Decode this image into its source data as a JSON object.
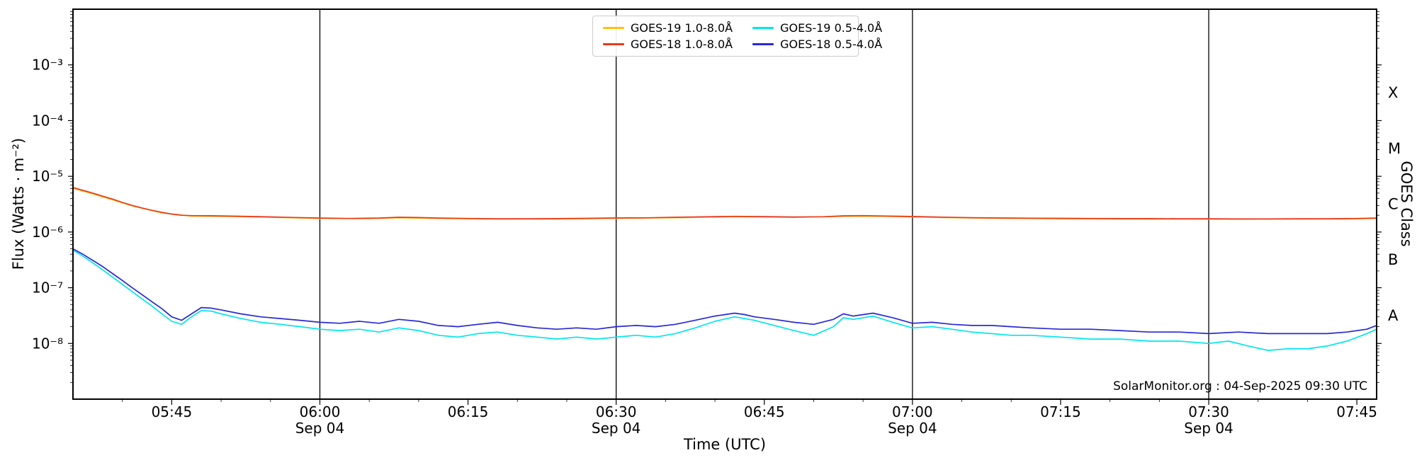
{
  "chart_data": {
    "type": "line",
    "title": "",
    "annotation": "SolarMonitor.org : 04-Sep-2025 09:30 UTC",
    "legend_position": "top-center",
    "grid": false,
    "x_axis": {
      "label": "Time (UTC)",
      "range": [
        "05:35",
        "07:47"
      ],
      "major_ticks": [
        {
          "time": "05:45",
          "label": "05:45"
        },
        {
          "time": "06:00",
          "label": "06:00"
        },
        {
          "time": "06:15",
          "label": "06:15"
        },
        {
          "time": "06:30",
          "label": "06:30"
        },
        {
          "time": "06:45",
          "label": "06:45"
        },
        {
          "time": "07:00",
          "label": "07:00"
        },
        {
          "time": "07:15",
          "label": "07:15"
        },
        {
          "time": "07:30",
          "label": "07:30"
        },
        {
          "time": "07:45",
          "label": "07:45"
        }
      ],
      "day_labels": [
        {
          "time": "06:00",
          "label": "Sep 04"
        },
        {
          "time": "06:30",
          "label": "Sep 04"
        },
        {
          "time": "07:00",
          "label": "Sep 04"
        },
        {
          "time": "07:30",
          "label": "Sep 04"
        }
      ],
      "minor_tick_minutes": 5
    },
    "y_axis": {
      "label": "Flux (Watts · m⁻²)",
      "scale": "log",
      "lim": [
        1e-09,
        0.01
      ],
      "major_ticks": [
        {
          "value": 0.001,
          "label": "10⁻³"
        },
        {
          "value": 0.0001,
          "label": "10⁻⁴"
        },
        {
          "value": 1e-05,
          "label": "10⁻⁵"
        },
        {
          "value": 1e-06,
          "label": "10⁻⁶"
        },
        {
          "value": 1e-07,
          "label": "10⁻⁷"
        },
        {
          "value": 1e-08,
          "label": "10⁻⁸"
        }
      ]
    },
    "right_axis": {
      "label": "GOES Class",
      "class_labels": [
        {
          "label": "X",
          "value": 0.0003162
        },
        {
          "label": "M",
          "value": 3.162e-05
        },
        {
          "label": "C",
          "value": 3.162e-06
        },
        {
          "label": "B",
          "value": 3.162e-07
        },
        {
          "label": "A",
          "value": 3.162e-08
        }
      ]
    },
    "vlines": [
      "06:00",
      "06:30",
      "07:00",
      "07:30"
    ],
    "series": [
      {
        "id": "goes19-long",
        "name": "GOES-19 1.0-8.0Å",
        "color": "#FFC30B",
        "points": [
          [
            "05:35",
            6.1e-06
          ],
          [
            "05:38",
            4.3e-06
          ],
          [
            "05:41",
            2.95e-06
          ],
          [
            "05:44",
            2.2e-06
          ],
          [
            "05:47",
            1.93e-06
          ],
          [
            "05:51",
            1.9e-06
          ],
          [
            "05:55",
            1.84e-06
          ],
          [
            "06:00",
            1.75e-06
          ],
          [
            "06:05",
            1.74e-06
          ],
          [
            "06:08",
            1.8e-06
          ],
          [
            "06:12",
            1.75e-06
          ],
          [
            "06:18",
            1.7e-06
          ],
          [
            "06:24",
            1.71e-06
          ],
          [
            "06:30",
            1.76e-06
          ],
          [
            "06:36",
            1.81e-06
          ],
          [
            "06:42",
            1.88e-06
          ],
          [
            "06:48",
            1.83e-06
          ],
          [
            "06:53",
            1.92e-06
          ],
          [
            "06:57",
            1.91e-06
          ],
          [
            "07:03",
            1.82e-06
          ],
          [
            "07:09",
            1.76e-06
          ],
          [
            "07:15",
            1.73e-06
          ],
          [
            "07:21",
            1.71e-06
          ],
          [
            "07:27",
            1.7e-06
          ],
          [
            "07:33",
            1.69e-06
          ],
          [
            "07:39",
            1.7e-06
          ],
          [
            "07:45",
            1.72e-06
          ],
          [
            "07:47",
            1.75e-06
          ]
        ]
      },
      {
        "id": "goes18-long",
        "name": "GOES-18 1.0-8.0Å",
        "color": "#E83A1E",
        "points": [
          [
            "05:35",
            6.3e-06
          ],
          [
            "05:36",
            5.6e-06
          ],
          [
            "05:37",
            5e-06
          ],
          [
            "05:38",
            4.4e-06
          ],
          [
            "05:39",
            3.9e-06
          ],
          [
            "05:40",
            3.4e-06
          ],
          [
            "05:41",
            3e-06
          ],
          [
            "05:42",
            2.7e-06
          ],
          [
            "05:43",
            2.45e-06
          ],
          [
            "05:44",
            2.25e-06
          ],
          [
            "05:45",
            2.1e-06
          ],
          [
            "05:46",
            2e-06
          ],
          [
            "05:47",
            1.97e-06
          ],
          [
            "05:49",
            1.96e-06
          ],
          [
            "05:51",
            1.93e-06
          ],
          [
            "05:53",
            1.9e-06
          ],
          [
            "05:55",
            1.87e-06
          ],
          [
            "05:57",
            1.83e-06
          ],
          [
            "06:00",
            1.78e-06
          ],
          [
            "06:03",
            1.75e-06
          ],
          [
            "06:06",
            1.78e-06
          ],
          [
            "06:08",
            1.84e-06
          ],
          [
            "06:10",
            1.82e-06
          ],
          [
            "06:12",
            1.78e-06
          ],
          [
            "06:15",
            1.75e-06
          ],
          [
            "06:18",
            1.73e-06
          ],
          [
            "06:21",
            1.73e-06
          ],
          [
            "06:24",
            1.74e-06
          ],
          [
            "06:27",
            1.76e-06
          ],
          [
            "06:30",
            1.79e-06
          ],
          [
            "06:33",
            1.8e-06
          ],
          [
            "06:36",
            1.84e-06
          ],
          [
            "06:39",
            1.88e-06
          ],
          [
            "06:42",
            1.91e-06
          ],
          [
            "06:45",
            1.89e-06
          ],
          [
            "06:48",
            1.86e-06
          ],
          [
            "06:51",
            1.88e-06
          ],
          [
            "06:53",
            1.95e-06
          ],
          [
            "06:55",
            1.97e-06
          ],
          [
            "06:57",
            1.94e-06
          ],
          [
            "07:00",
            1.9e-06
          ],
          [
            "07:03",
            1.85e-06
          ],
          [
            "07:06",
            1.81e-06
          ],
          [
            "07:09",
            1.79e-06
          ],
          [
            "07:12",
            1.77e-06
          ],
          [
            "07:15",
            1.76e-06
          ],
          [
            "07:18",
            1.75e-06
          ],
          [
            "07:21",
            1.74e-06
          ],
          [
            "07:24",
            1.74e-06
          ],
          [
            "07:27",
            1.73e-06
          ],
          [
            "07:30",
            1.73e-06
          ],
          [
            "07:33",
            1.72e-06
          ],
          [
            "07:36",
            1.72e-06
          ],
          [
            "07:39",
            1.73e-06
          ],
          [
            "07:42",
            1.73e-06
          ],
          [
            "07:45",
            1.75e-06
          ],
          [
            "07:47",
            1.78e-06
          ]
        ]
      },
      {
        "id": "goes19-short",
        "name": "GOES-19 0.5-4.0Å",
        "color": "#00E5EE",
        "points": [
          [
            "05:35",
            4.7e-07
          ],
          [
            "05:36",
            3.7e-07
          ],
          [
            "05:37",
            2.8e-07
          ],
          [
            "05:38",
            2.1e-07
          ],
          [
            "05:39",
            1.55e-07
          ],
          [
            "05:40",
            1.15e-07
          ],
          [
            "05:41",
            8.5e-08
          ],
          [
            "05:42",
            6.3e-08
          ],
          [
            "05:43",
            4.7e-08
          ],
          [
            "05:44",
            3.4e-08
          ],
          [
            "05:45",
            2.5e-08
          ],
          [
            "05:46",
            2.2e-08
          ],
          [
            "05:47",
            3e-08
          ],
          [
            "05:48",
            3.9e-08
          ],
          [
            "05:49",
            3.8e-08
          ],
          [
            "05:50",
            3.4e-08
          ],
          [
            "05:52",
            2.8e-08
          ],
          [
            "05:54",
            2.4e-08
          ],
          [
            "05:56",
            2.2e-08
          ],
          [
            "05:58",
            2e-08
          ],
          [
            "06:00",
            1.8e-08
          ],
          [
            "06:02",
            1.7e-08
          ],
          [
            "06:04",
            1.8e-08
          ],
          [
            "06:06",
            1.6e-08
          ],
          [
            "06:08",
            1.9e-08
          ],
          [
            "06:10",
            1.7e-08
          ],
          [
            "06:12",
            1.4e-08
          ],
          [
            "06:14",
            1.3e-08
          ],
          [
            "06:16",
            1.5e-08
          ],
          [
            "06:18",
            1.6e-08
          ],
          [
            "06:20",
            1.4e-08
          ],
          [
            "06:22",
            1.3e-08
          ],
          [
            "06:24",
            1.2e-08
          ],
          [
            "06:26",
            1.3e-08
          ],
          [
            "06:28",
            1.2e-08
          ],
          [
            "06:30",
            1.3e-08
          ],
          [
            "06:32",
            1.4e-08
          ],
          [
            "06:34",
            1.3e-08
          ],
          [
            "06:36",
            1.5e-08
          ],
          [
            "06:38",
            1.9e-08
          ],
          [
            "06:40",
            2.5e-08
          ],
          [
            "06:42",
            3e-08
          ],
          [
            "06:43",
            2.8e-08
          ],
          [
            "06:44",
            2.6e-08
          ],
          [
            "06:46",
            2.1e-08
          ],
          [
            "06:48",
            1.7e-08
          ],
          [
            "06:50",
            1.4e-08
          ],
          [
            "06:52",
            2e-08
          ],
          [
            "06:53",
            2.9e-08
          ],
          [
            "06:54",
            2.7e-08
          ],
          [
            "06:56",
            3.1e-08
          ],
          [
            "06:58",
            2.4e-08
          ],
          [
            "07:00",
            1.9e-08
          ],
          [
            "07:02",
            2e-08
          ],
          [
            "07:04",
            1.8e-08
          ],
          [
            "07:06",
            1.6e-08
          ],
          [
            "07:08",
            1.5e-08
          ],
          [
            "07:10",
            1.4e-08
          ],
          [
            "07:12",
            1.4e-08
          ],
          [
            "07:15",
            1.3e-08
          ],
          [
            "07:18",
            1.2e-08
          ],
          [
            "07:21",
            1.2e-08
          ],
          [
            "07:24",
            1.1e-08
          ],
          [
            "07:27",
            1.1e-08
          ],
          [
            "07:30",
            1e-08
          ],
          [
            "07:32",
            1.1e-08
          ],
          [
            "07:34",
            9e-09
          ],
          [
            "07:36",
            7.5e-09
          ],
          [
            "07:38",
            8e-09
          ],
          [
            "07:40",
            8e-09
          ],
          [
            "07:42",
            9e-09
          ],
          [
            "07:44",
            1.1e-08
          ],
          [
            "07:46",
            1.5e-08
          ],
          [
            "07:47",
            1.8e-08
          ]
        ]
      },
      {
        "id": "goes18-short",
        "name": "GOES-18 0.5-4.0Å",
        "color": "#2828D7",
        "points": [
          [
            "05:35",
            5e-07
          ],
          [
            "05:36",
            4e-07
          ],
          [
            "05:37",
            3.1e-07
          ],
          [
            "05:38",
            2.4e-07
          ],
          [
            "05:39",
            1.8e-07
          ],
          [
            "05:40",
            1.35e-07
          ],
          [
            "05:41",
            1e-07
          ],
          [
            "05:42",
            7.5e-08
          ],
          [
            "05:43",
            5.6e-08
          ],
          [
            "05:44",
            4.2e-08
          ],
          [
            "05:45",
            3e-08
          ],
          [
            "05:46",
            2.6e-08
          ],
          [
            "05:47",
            3.4e-08
          ],
          [
            "05:48",
            4.4e-08
          ],
          [
            "05:49",
            4.3e-08
          ],
          [
            "05:50",
            4e-08
          ],
          [
            "05:52",
            3.4e-08
          ],
          [
            "05:54",
            3e-08
          ],
          [
            "05:56",
            2.8e-08
          ],
          [
            "05:58",
            2.6e-08
          ],
          [
            "06:00",
            2.4e-08
          ],
          [
            "06:02",
            2.3e-08
          ],
          [
            "06:04",
            2.5e-08
          ],
          [
            "06:06",
            2.3e-08
          ],
          [
            "06:08",
            2.7e-08
          ],
          [
            "06:10",
            2.5e-08
          ],
          [
            "06:12",
            2.1e-08
          ],
          [
            "06:14",
            2e-08
          ],
          [
            "06:16",
            2.2e-08
          ],
          [
            "06:18",
            2.4e-08
          ],
          [
            "06:20",
            2.1e-08
          ],
          [
            "06:22",
            1.9e-08
          ],
          [
            "06:24",
            1.8e-08
          ],
          [
            "06:26",
            1.9e-08
          ],
          [
            "06:28",
            1.8e-08
          ],
          [
            "06:30",
            2e-08
          ],
          [
            "06:32",
            2.1e-08
          ],
          [
            "06:34",
            2e-08
          ],
          [
            "06:36",
            2.2e-08
          ],
          [
            "06:38",
            2.6e-08
          ],
          [
            "06:40",
            3.1e-08
          ],
          [
            "06:42",
            3.5e-08
          ],
          [
            "06:43",
            3.3e-08
          ],
          [
            "06:44",
            3e-08
          ],
          [
            "06:46",
            2.7e-08
          ],
          [
            "06:48",
            2.4e-08
          ],
          [
            "06:50",
            2.2e-08
          ],
          [
            "06:52",
            2.7e-08
          ],
          [
            "06:53",
            3.4e-08
          ],
          [
            "06:54",
            3.1e-08
          ],
          [
            "06:56",
            3.5e-08
          ],
          [
            "06:58",
            2.9e-08
          ],
          [
            "07:00",
            2.3e-08
          ],
          [
            "07:02",
            2.4e-08
          ],
          [
            "07:04",
            2.2e-08
          ],
          [
            "07:06",
            2.1e-08
          ],
          [
            "07:08",
            2.1e-08
          ],
          [
            "07:10",
            2e-08
          ],
          [
            "07:12",
            1.9e-08
          ],
          [
            "07:15",
            1.8e-08
          ],
          [
            "07:18",
            1.8e-08
          ],
          [
            "07:21",
            1.7e-08
          ],
          [
            "07:24",
            1.6e-08
          ],
          [
            "07:27",
            1.6e-08
          ],
          [
            "07:30",
            1.5e-08
          ],
          [
            "07:33",
            1.6e-08
          ],
          [
            "07:36",
            1.5e-08
          ],
          [
            "07:39",
            1.5e-08
          ],
          [
            "07:42",
            1.5e-08
          ],
          [
            "07:44",
            1.6e-08
          ],
          [
            "07:46",
            1.8e-08
          ],
          [
            "07:47",
            2.1e-08
          ]
        ]
      }
    ]
  }
}
